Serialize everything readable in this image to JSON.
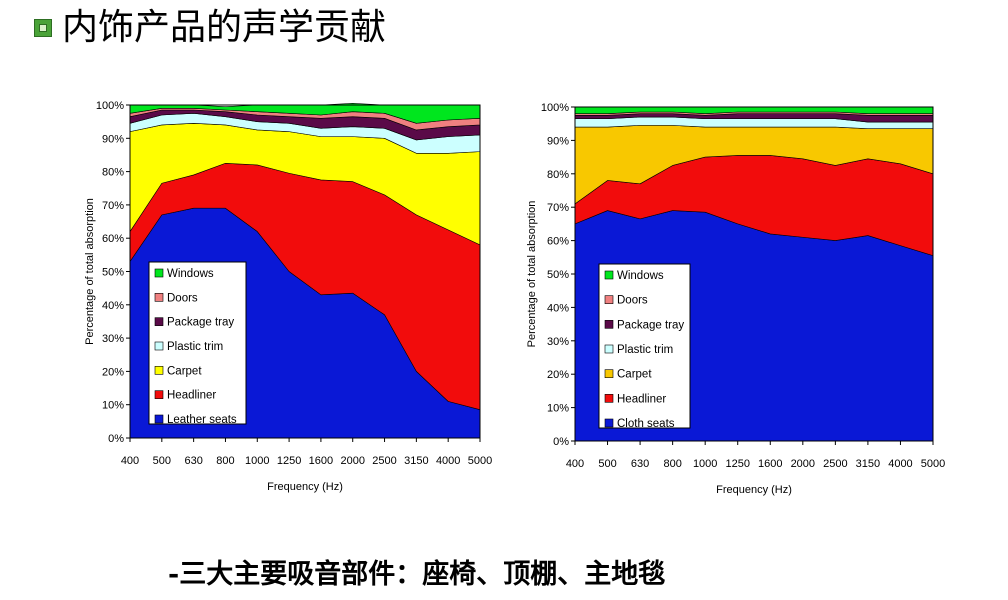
{
  "page_title": "内饰产品的声学贡献",
  "footer_text": "-三大主要吸音部件：座椅、顶棚、主地毯",
  "chart_data": [
    {
      "type": "area",
      "stacked": true,
      "xlabel": "Frequency (Hz)",
      "ylabel": "Percentage of total absorption",
      "ylim": [
        0,
        100
      ],
      "yticks": [
        "0%",
        "10%",
        "20%",
        "30%",
        "40%",
        "50%",
        "60%",
        "70%",
        "80%",
        "90%",
        "100%"
      ],
      "categories": [
        "400",
        "500",
        "630",
        "800",
        "1000",
        "1250",
        "1600",
        "2000",
        "2500",
        "3150",
        "4000",
        "5000"
      ],
      "legend_position": "bottom-left",
      "series": [
        {
          "name": "Leather seats",
          "color": "#0a18d6",
          "values": [
            53,
            67,
            69,
            69,
            62,
            50,
            43,
            43.5,
            37,
            20,
            11,
            8.5
          ]
        },
        {
          "name": "Headliner",
          "color": "#f20c0c",
          "values": [
            9,
            9.5,
            10,
            13.5,
            20,
            29.5,
            34.5,
            33.5,
            36,
            47,
            51.5,
            49.5
          ]
        },
        {
          "name": "Carpet",
          "color": "#ffff00",
          "values": [
            30,
            17.5,
            15.5,
            11.5,
            10.5,
            12.5,
            13,
            13.5,
            17,
            18.5,
            23,
            28
          ]
        },
        {
          "name": "Plastic trim",
          "color": "#ccffff",
          "values": [
            2.5,
            3,
            3,
            2.5,
            2.5,
            2.5,
            2.5,
            3,
            3,
            4,
            5,
            5
          ]
        },
        {
          "name": "Package tray",
          "color": "#5a0a48",
          "values": [
            2,
            1.5,
            1,
            1.5,
            2,
            2,
            3,
            3,
            3,
            3,
            3,
            3
          ]
        },
        {
          "name": "Doors",
          "color": "#f08080",
          "values": [
            1,
            0.5,
            0.5,
            0.5,
            1,
            1,
            1,
            1.5,
            1.5,
            2,
            2,
            2
          ]
        },
        {
          "name": "Windows",
          "color": "#00e61e",
          "values": [
            2.5,
            1,
            1,
            1,
            2,
            2.5,
            3,
            2.5,
            2.5,
            5.5,
            4.5,
            4
          ]
        }
      ]
    },
    {
      "type": "area",
      "stacked": true,
      "xlabel": "Frequency (Hz)",
      "ylabel": "Percentage of total absorption",
      "ylim": [
        0,
        100
      ],
      "yticks": [
        "0%",
        "10%",
        "20%",
        "30%",
        "40%",
        "50%",
        "60%",
        "70%",
        "80%",
        "90%",
        "100%"
      ],
      "categories": [
        "400",
        "500",
        "630",
        "800",
        "1000",
        "1250",
        "1600",
        "2000",
        "2500",
        "3150",
        "4000",
        "5000"
      ],
      "legend_position": "bottom-left",
      "series": [
        {
          "name": "Cloth seats",
          "color": "#0a18d6",
          "values": [
            65,
            69,
            66.5,
            69,
            68.5,
            65,
            62,
            61,
            60,
            61.5,
            58.5,
            55.5
          ]
        },
        {
          "name": "Headliner",
          "color": "#f20c0c",
          "values": [
            6,
            9,
            10.5,
            13.5,
            16.5,
            20.5,
            23.5,
            23.5,
            22.5,
            23,
            24.5,
            24.5
          ]
        },
        {
          "name": "Carpet",
          "color": "#f8c800",
          "values": [
            23,
            16,
            17.5,
            12,
            9,
            8.5,
            8.5,
            9.5,
            11.5,
            9,
            10.5,
            13.5
          ]
        },
        {
          "name": "Plastic trim",
          "color": "#ccffff",
          "values": [
            2.5,
            2.5,
            2.5,
            2.5,
            2.5,
            2.5,
            2.5,
            2.5,
            2.5,
            2,
            2,
            2
          ]
        },
        {
          "name": "Package tray",
          "color": "#5a0a48",
          "values": [
            1,
            1,
            1,
            1,
            1,
            1.5,
            1.5,
            1.5,
            1.5,
            2,
            2,
            2
          ]
        },
        {
          "name": "Doors",
          "color": "#f08080",
          "values": [
            0.5,
            0.5,
            0.5,
            0.5,
            0.5,
            0.5,
            0.5,
            0.5,
            0.5,
            0.5,
            0.5,
            0.5
          ]
        },
        {
          "name": "Windows",
          "color": "#00e61e",
          "values": [
            2,
            2,
            1.5,
            1.5,
            2,
            1.5,
            1.5,
            1.5,
            1.5,
            2,
            2,
            2
          ]
        }
      ]
    }
  ]
}
